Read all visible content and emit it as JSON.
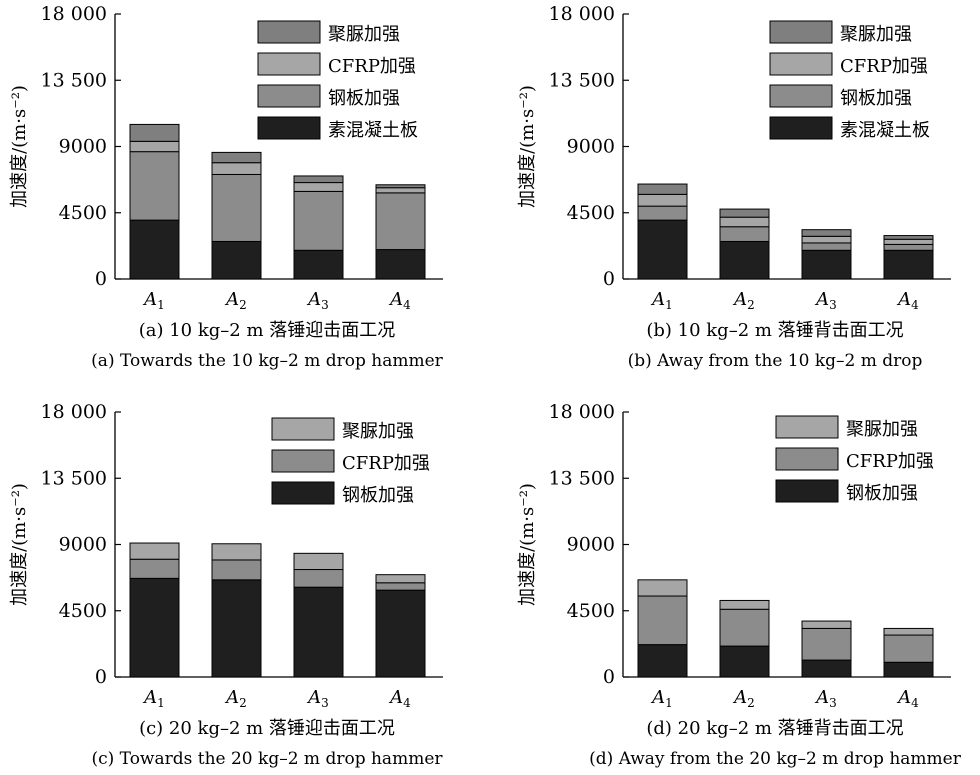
{
  "colors": {
    "素混凝土板": "#1f1f1f",
    "钢板加强": "#8c8c8c",
    "CFRP加强": "#a6a6a6",
    "聚脲加强": "#7f7f7f"
  },
  "chart_data": [
    {
      "id": "a",
      "type": "bar",
      "stacked": true,
      "categories": [
        "A1",
        "A2",
        "A3",
        "A4"
      ],
      "ylabel": "加速度/(m·s⁻²)",
      "ylim": [
        0,
        18000
      ],
      "yticks": [
        "0",
        "4500",
        "9000",
        "13 500",
        "18 000"
      ],
      "legend_order": [
        "聚脲加强",
        "CFRP加强",
        "钢板加强",
        "素混凝土板"
      ],
      "series": [
        {
          "name": "素混凝土板",
          "color": "#1f1f1f",
          "values": [
            4000,
            2550,
            1950,
            2000
          ]
        },
        {
          "name": "钢板加强",
          "color": "#8c8c8c",
          "values": [
            4650,
            4550,
            4000,
            3850
          ]
        },
        {
          "name": "CFRP加强",
          "color": "#a6a6a6",
          "values": [
            700,
            800,
            600,
            350
          ]
        },
        {
          "name": "聚脲加强",
          "color": "#7f7f7f",
          "values": [
            1150,
            700,
            450,
            200
          ]
        }
      ],
      "caption_cn": "(a) 10 kg–2 m 落锤迎击面工况",
      "caption_en": "(a) Towards the 10 kg–2 m drop hammer"
    },
    {
      "id": "b",
      "type": "bar",
      "stacked": true,
      "categories": [
        "A1",
        "A2",
        "A3",
        "A4"
      ],
      "ylabel": "加速度/(m·s⁻²)",
      "ylim": [
        0,
        18000
      ],
      "yticks": [
        "0",
        "4500",
        "9000",
        "13 500",
        "18 000"
      ],
      "legend_order": [
        "聚脲加强",
        "CFRP加强",
        "钢板加强",
        "素混凝土板"
      ],
      "series": [
        {
          "name": "素混凝土板",
          "color": "#1f1f1f",
          "values": [
            4000,
            2550,
            1950,
            1950
          ]
        },
        {
          "name": "钢板加强",
          "color": "#8c8c8c",
          "values": [
            950,
            1000,
            500,
            400
          ]
        },
        {
          "name": "CFRP加强",
          "color": "#a6a6a6",
          "values": [
            800,
            650,
            450,
            350
          ]
        },
        {
          "name": "聚脲加强",
          "color": "#7f7f7f",
          "values": [
            700,
            550,
            450,
            250
          ]
        }
      ],
      "caption_cn": "(b) 10 kg–2 m 落锤背击面工况",
      "caption_en": "(b) Away from the 10 kg–2 m drop"
    },
    {
      "id": "c",
      "type": "bar",
      "stacked": true,
      "categories": [
        "A1",
        "A2",
        "A3",
        "A4"
      ],
      "ylabel": "加速度/(m·s⁻²)",
      "ylim": [
        0,
        18000
      ],
      "yticks": [
        "0",
        "4500",
        "9000",
        "13 500",
        "18 000"
      ],
      "legend_order": [
        "聚脲加强",
        "CFRP加强",
        "钢板加强"
      ],
      "series": [
        {
          "name": "钢板加强",
          "color": "#1f1f1f",
          "values": [
            6700,
            6600,
            6100,
            5900
          ]
        },
        {
          "name": "CFRP加强",
          "color": "#8c8c8c",
          "values": [
            1300,
            1350,
            1200,
            500
          ]
        },
        {
          "name": "聚脲加强",
          "color": "#a6a6a6",
          "values": [
            1100,
            1100,
            1100,
            550
          ]
        }
      ],
      "caption_cn": "(c) 20 kg–2 m 落锤迎击面工况",
      "caption_en": "(c) Towards the 20 kg–2 m drop hammer"
    },
    {
      "id": "d",
      "type": "bar",
      "stacked": true,
      "categories": [
        "A1",
        "A2",
        "A3",
        "A4"
      ],
      "ylabel": "加速度/(m·s⁻²)",
      "ylim": [
        0,
        18000
      ],
      "yticks": [
        "0",
        "4500",
        "9000",
        "13 500",
        "18 000"
      ],
      "legend_order": [
        "聚脲加强",
        "CFRP加强",
        "钢板加强"
      ],
      "series": [
        {
          "name": "钢板加强",
          "color": "#1f1f1f",
          "values": [
            2200,
            2100,
            1150,
            1000
          ]
        },
        {
          "name": "CFRP加强",
          "color": "#8c8c8c",
          "values": [
            3300,
            2500,
            2150,
            1850
          ]
        },
        {
          "name": "聚脲加强",
          "color": "#a6a6a6",
          "values": [
            1100,
            600,
            500,
            450
          ]
        }
      ],
      "caption_cn": "(d) 20 kg–2 m 落锤背击面工况",
      "caption_en": "(d) Away from the 20 kg–2 m drop hammer"
    }
  ]
}
